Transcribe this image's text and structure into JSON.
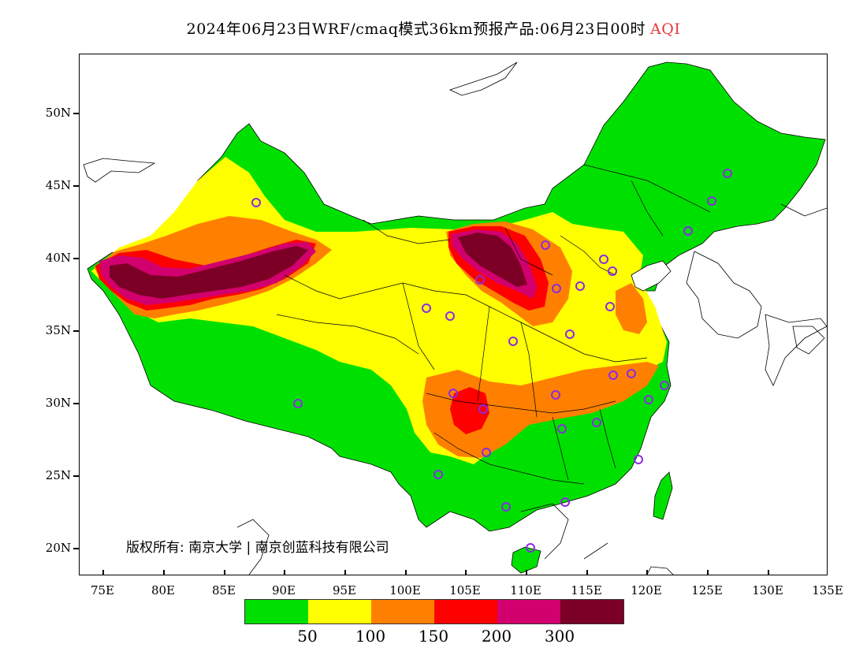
{
  "title": {
    "main": "2024年06月23日WRF/cmaq模式36km预报产品:06月23日00时",
    "variable": "AQI"
  },
  "axes": {
    "y_ticks": [
      "50N",
      "45N",
      "40N",
      "35N",
      "30N",
      "25N",
      "20N"
    ],
    "x_ticks": [
      "75E",
      "80E",
      "85E",
      "90E",
      "95E",
      "100E",
      "105E",
      "110E",
      "115E",
      "120E",
      "125E",
      "130E",
      "135E"
    ]
  },
  "copyright": "版权所有: 南京大学 | 南京创蓝科技有限公司",
  "legend": {
    "colors": [
      "#00e000",
      "#ffff00",
      "#ff8000",
      "#ff0000",
      "#d2006e",
      "#7c0025"
    ],
    "labels": [
      "50",
      "100",
      "150",
      "200",
      "300"
    ]
  },
  "colors": {
    "green": "#00e000",
    "yellow": "#ffff00",
    "orange": "#ff8000",
    "red": "#ff0000",
    "purple": "#d2006e",
    "maroon": "#7c0025",
    "station_marker": "#8a2be2"
  }
}
